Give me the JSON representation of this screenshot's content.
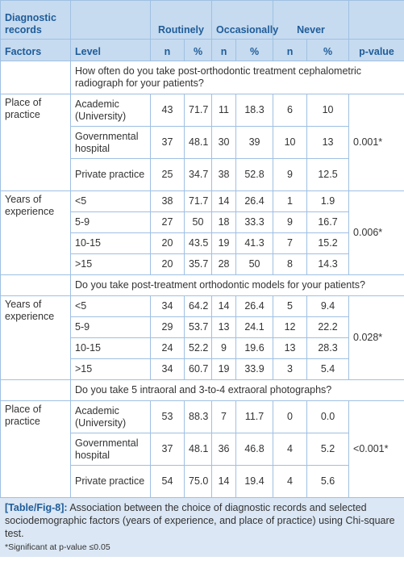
{
  "header": {
    "row1": [
      "Diagnostic records",
      "Routinely",
      "Occasionally",
      "Never"
    ],
    "row2": [
      "Factors",
      "Level",
      "n",
      "%",
      "n",
      "%",
      "n",
      "%",
      "p-value"
    ]
  },
  "sections": [
    {
      "question": "How often do you take post-orthodontic treatment cephalometric radiograph for your patients?",
      "groups": [
        {
          "factor": "Place of practice",
          "p_value": "0.001*",
          "rows": [
            {
              "level": "Academic (University)",
              "values": [
                "43",
                "71.7",
                "11",
                "18.3",
                "6",
                "10"
              ]
            },
            {
              "level": "Governmental hospital",
              "values": [
                "37",
                "48.1",
                "30",
                "39",
                "10",
                "13"
              ]
            },
            {
              "level": "Private practice",
              "values": [
                "25",
                "34.7",
                "38",
                "52.8",
                "9",
                "12.5"
              ]
            }
          ]
        },
        {
          "factor": "Years of experience",
          "p_value": "0.006*",
          "rows": [
            {
              "level": "<5",
              "values": [
                "38",
                "71.7",
                "14",
                "26.4",
                "1",
                "1.9"
              ]
            },
            {
              "level": "5-9",
              "values": [
                "27",
                "50",
                "18",
                "33.3",
                "9",
                "16.7"
              ]
            },
            {
              "level": "10-15",
              "values": [
                "20",
                "43.5",
                "19",
                "41.3",
                "7",
                "15.2"
              ]
            },
            {
              "level": ">15",
              "values": [
                "20",
                "35.7",
                "28",
                "50",
                "8",
                "14.3"
              ]
            }
          ]
        }
      ]
    },
    {
      "question": "Do you take post-treatment orthodontic models for your patients?",
      "groups": [
        {
          "factor": "Years of experience",
          "p_value": "0.028*",
          "rows": [
            {
              "level": "<5",
              "values": [
                "34",
                "64.2",
                "14",
                "26.4",
                "5",
                "9.4"
              ]
            },
            {
              "level": "5-9",
              "values": [
                "29",
                "53.7",
                "13",
                "24.1",
                "12",
                "22.2"
              ]
            },
            {
              "level": "10-15",
              "values": [
                "24",
                "52.2",
                "9",
                "19.6",
                "13",
                "28.3"
              ]
            },
            {
              "level": ">15",
              "values": [
                "34",
                "60.7",
                "19",
                "33.9",
                "3",
                "5.4"
              ]
            }
          ]
        }
      ]
    },
    {
      "question": "Do you take 5 intraoral and 3-to-4 extraoral photographs?",
      "groups": [
        {
          "factor": "Place of practice",
          "p_value": "<0.001*",
          "rows": [
            {
              "level": "Academic (University)",
              "values": [
                "53",
                "88.3",
                "7",
                "11.7",
                "0",
                "0.0"
              ]
            },
            {
              "level": "Governmental hospital",
              "values": [
                "37",
                "48.1",
                "36",
                "46.8",
                "4",
                "5.2"
              ]
            },
            {
              "level": "Private practice",
              "values": [
                "54",
                "75.0",
                "14",
                "19.4",
                "4",
                "5.6"
              ]
            }
          ]
        }
      ]
    }
  ],
  "caption": {
    "label": "[Table/Fig-8]:",
    "text": "Association between the choice of diagnostic records and selected sociodemographic factors (years of experience, and place of practice) using Chi-square test."
  },
  "footnote": "*Significant at p-value ≤0.05"
}
